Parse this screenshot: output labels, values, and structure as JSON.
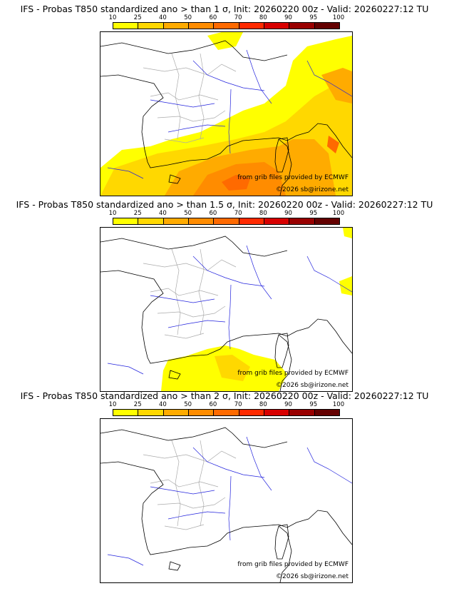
{
  "colorbar": {
    "ticks": [
      "10",
      "25",
      "40",
      "50",
      "60",
      "70",
      "80",
      "90",
      "95",
      "100"
    ],
    "colors": [
      "#ffff00",
      "#ffd800",
      "#ffab00",
      "#ff8c00",
      "#ff6a00",
      "#ff2a00",
      "#d80000",
      "#990000",
      "#640000"
    ]
  },
  "panels": [
    {
      "title": "IFS - Probas T850  standardized ano > than 1 σ, Init: 20260220 00z - Valid: 20260227:12 TU",
      "level": "high"
    },
    {
      "title": "IFS - Probas T850  standardized ano > than 1.5 σ, Init: 20260220 00z - Valid: 20260227:12 TU",
      "level": "mid"
    },
    {
      "title": "IFS - Probas T850  standardized ano > than 2 σ, Init: 20260220 00z - Valid: 20260227:12 TU",
      "level": "none"
    }
  ],
  "credits": {
    "source": "from grib files provided by ECMWF",
    "copyright": "©2026 sb@irizone.net"
  }
}
